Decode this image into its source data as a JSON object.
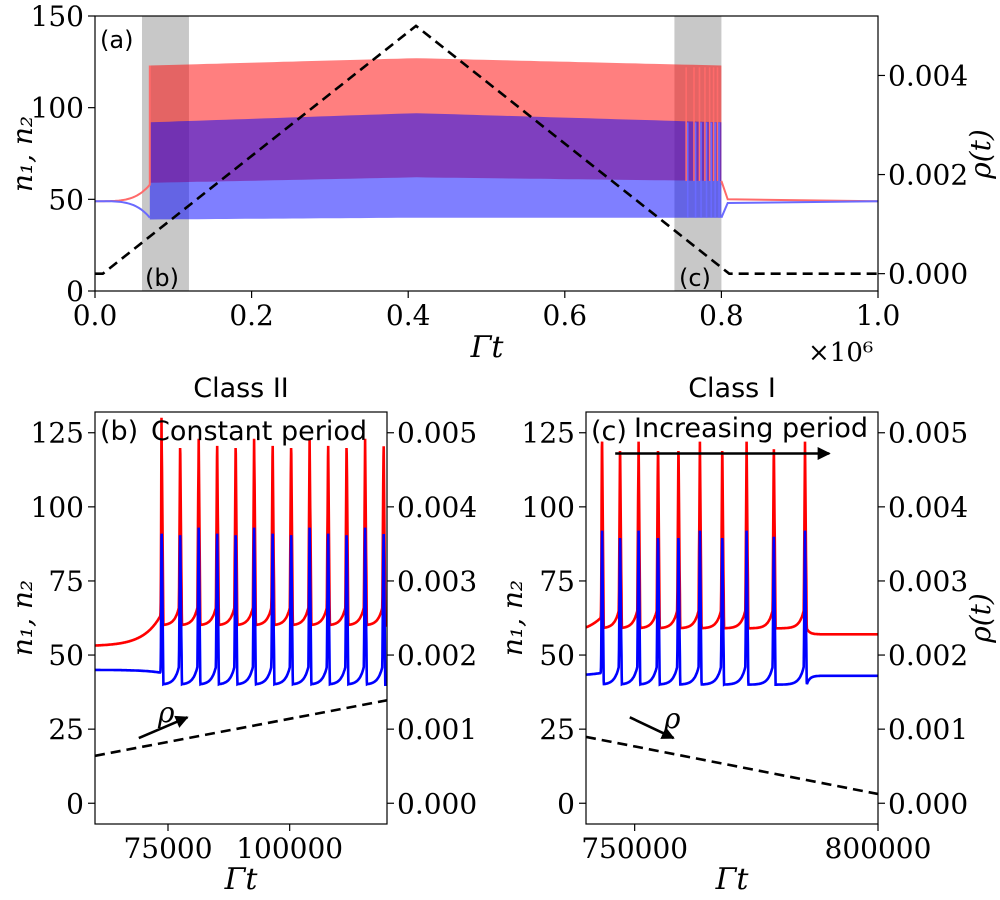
{
  "chart_data": [
    {
      "panel": "a",
      "type": "line",
      "panel_label": "(a)",
      "xlabel": "Γt",
      "ylabel_left": "n₁, n₂",
      "ylabel_right": "ρ(t)",
      "x_multiplier": "×10⁶",
      "xlim": [
        0.0,
        1.0
      ],
      "ylim_left": [
        0,
        150
      ],
      "ylim_right": [
        -0.00035,
        0.0052
      ],
      "x_ticks": [
        "0.0",
        "0.2",
        "0.4",
        "0.6",
        "0.8",
        "1.0"
      ],
      "x_tick_values": [
        0.0,
        0.2,
        0.4,
        0.6,
        0.8,
        1.0
      ],
      "y_ticks_left": [
        "0",
        "50",
        "100",
        "150"
      ],
      "y_tick_values_left": [
        0,
        50,
        100,
        150
      ],
      "y_ticks_right": [
        "0.000",
        "0.002",
        "0.004"
      ],
      "y_tick_values_right": [
        0.0,
        0.002,
        0.004
      ],
      "shaded_regions": [
        {
          "label": "(b)",
          "x": [
            0.06,
            0.12
          ]
        },
        {
          "label": "(c)",
          "x": [
            0.74,
            0.8
          ]
        }
      ],
      "rest_level": {
        "n1": 49,
        "n2": 49
      },
      "oscillation_band_n1": {
        "x": [
          0.07,
          0.41,
          0.8
        ],
        "min": [
          59,
          62,
          60
        ],
        "max": [
          123,
          127,
          123
        ]
      },
      "oscillation_band_n2": {
        "x": [
          0.07,
          0.41,
          0.8
        ],
        "min": [
          39,
          40,
          40
        ],
        "max": [
          92,
          97,
          92
        ]
      },
      "n2_band_lower_top": {
        "x": [
          0.07,
          0.41,
          0.8
        ],
        "y": [
          58,
          70,
          40
        ]
      },
      "rho_series": {
        "name": "ρ(t)",
        "x": [
          0.0,
          0.01,
          0.41,
          0.81,
          1.0
        ],
        "y": [
          0.0,
          0.0,
          0.005,
          0.0,
          0.0
        ]
      },
      "series": [
        {
          "name": "n1",
          "color": "#ff0000"
        },
        {
          "name": "n2",
          "color": "#0000ff"
        },
        {
          "name": "ρ",
          "color": "#000000",
          "style": "dashed"
        }
      ]
    },
    {
      "panel": "b",
      "type": "line",
      "title": "Class II",
      "panel_label": "(b)",
      "annotation": "Constant period",
      "arrow_label": "ρ",
      "xlabel": "Γt",
      "ylabel_left": "n₁, n₂",
      "xlim": [
        60000,
        120000
      ],
      "ylim_left": [
        -7,
        132
      ],
      "ylim_right": [
        -0.00028,
        0.00528
      ],
      "x_ticks": [
        "75000",
        "100000"
      ],
      "x_tick_values": [
        75000,
        100000
      ],
      "y_ticks_left": [
        "0",
        "25",
        "50",
        "75",
        "100",
        "125"
      ],
      "y_tick_values_left": [
        0,
        25,
        50,
        75,
        100,
        125
      ],
      "y_ticks_right": [
        "0.000",
        "0.001",
        "0.002",
        "0.003",
        "0.004",
        "0.005"
      ],
      "y_tick_values_right": [
        0.0,
        0.001,
        0.002,
        0.003,
        0.004,
        0.005
      ],
      "spike_times": [
        73700,
        77500,
        81300,
        85100,
        88900,
        92700,
        96500,
        100300,
        104100,
        107900,
        111700,
        115500,
        119300
      ],
      "n1_rest": 53,
      "n1_spike_peak": 123,
      "n1_trough": 60,
      "n2_rest": 45,
      "n2_spike_peak": 93,
      "n2_trough": 40,
      "rho_series": {
        "x": [
          60000,
          120000
        ],
        "y": [
          0.00064,
          0.00139
        ]
      },
      "rho_arrow": {
        "x": [
          69000,
          79000
        ],
        "y": [
          22,
          29
        ]
      }
    },
    {
      "panel": "c",
      "type": "line",
      "title": "Class I",
      "panel_label": "(c)",
      "annotation": "Increasing period",
      "arrow_label": "ρ",
      "xlabel": "Γt",
      "ylabel_left": "n₁, n₂",
      "ylabel_right": "ρ(t)",
      "xlim": [
        740000,
        800000
      ],
      "ylim_left": [
        -7,
        132
      ],
      "ylim_right": [
        -0.00028,
        0.00528
      ],
      "x_ticks": [
        "750000",
        "800000"
      ],
      "x_tick_values": [
        750000,
        800000
      ],
      "y_ticks_left": [
        "0",
        "25",
        "50",
        "75",
        "100",
        "125"
      ],
      "y_tick_values_left": [
        0,
        25,
        50,
        75,
        100,
        125
      ],
      "y_ticks_right": [
        "0.000",
        "0.001",
        "0.002",
        "0.003",
        "0.004",
        "0.005"
      ],
      "y_tick_values_right": [
        0.0,
        0.001,
        0.002,
        0.003,
        0.004,
        0.005
      ],
      "spike_times": [
        743300,
        747000,
        750800,
        754800,
        759000,
        763400,
        768000,
        773000,
        778600,
        785000
      ],
      "n1_rest": 57,
      "n1_spike_peak": 122,
      "n1_trough": 59,
      "n2_rest": 43,
      "n2_spike_peak": 92,
      "n2_trough": 40,
      "rho_series": {
        "x": [
          740000,
          800000
        ],
        "y": [
          0.000895,
          0.000125
        ]
      },
      "rho_arrow": {
        "x": [
          749000,
          758000
        ],
        "y": [
          29,
          22
        ]
      },
      "period_arrow": {
        "x": [
          746000,
          790000
        ],
        "y": 118
      }
    }
  ]
}
